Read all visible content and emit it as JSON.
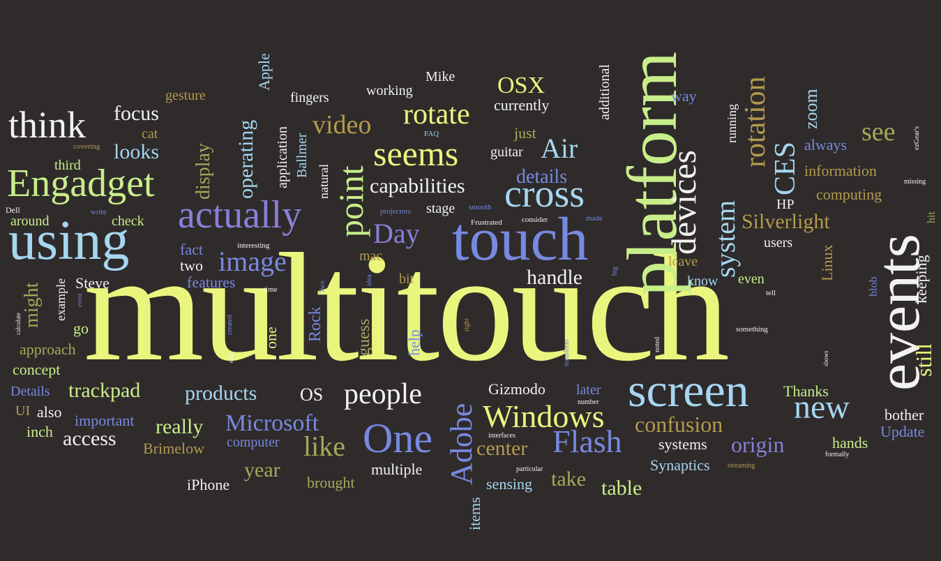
{
  "palette": {
    "background": "#2f2b2b",
    "yellow": "#eaf57e",
    "lime": "#c8ee8a",
    "blue": "#7789e0",
    "lightblue": "#a6d6f0",
    "white": "#f2f2f2",
    "olive": "#a7a85a",
    "gold": "#b39b4d",
    "purple": "#8a7fd8"
  },
  "words": [
    {
      "text": "multitouch",
      "color": "yellow"
    },
    {
      "text": "platform",
      "color": "lime"
    },
    {
      "text": "events",
      "color": "white"
    },
    {
      "text": "touch",
      "color": "blue"
    },
    {
      "text": "using",
      "color": "lightblue"
    },
    {
      "text": "screen",
      "color": "lightblue"
    },
    {
      "text": "Engadget",
      "color": "lime"
    },
    {
      "text": "actually",
      "color": "purple"
    },
    {
      "text": "devices",
      "color": "white"
    },
    {
      "text": "point",
      "color": "lime"
    },
    {
      "text": "One",
      "color": "blue"
    },
    {
      "text": "cross",
      "color": "lightblue"
    },
    {
      "text": "seems",
      "color": "yellow"
    },
    {
      "text": "think",
      "color": "white"
    },
    {
      "text": "new",
      "color": "lightblue"
    },
    {
      "text": "Windows",
      "color": "yellow"
    },
    {
      "text": "Adobe",
      "color": "blue"
    },
    {
      "text": "Flash",
      "color": "blue"
    },
    {
      "text": "rotation",
      "color": "gold"
    },
    {
      "text": "CES",
      "color": "lightblue"
    },
    {
      "text": "people",
      "color": "white"
    },
    {
      "text": "video",
      "color": "gold"
    },
    {
      "text": "rotate",
      "color": "yellow"
    },
    {
      "text": "image",
      "color": "blue"
    },
    {
      "text": "Day",
      "color": "purple"
    },
    {
      "text": "like",
      "color": "olive"
    },
    {
      "text": "system",
      "color": "lightblue"
    },
    {
      "text": "Air",
      "color": "lightblue"
    },
    {
      "text": "Microsoft",
      "color": "blue"
    },
    {
      "text": "see",
      "color": "olive"
    },
    {
      "text": "confusion",
      "color": "gold"
    },
    {
      "text": "origin",
      "color": "purple"
    },
    {
      "text": "center",
      "color": "gold"
    },
    {
      "text": "Silverlight",
      "color": "gold"
    },
    {
      "text": "still",
      "color": "yellow"
    },
    {
      "text": "OSX",
      "color": "yellow"
    },
    {
      "text": "capabilities",
      "color": "white"
    },
    {
      "text": "handle",
      "color": "white"
    },
    {
      "text": "focus",
      "color": "white"
    },
    {
      "text": "looks",
      "color": "lightblue"
    },
    {
      "text": "operating",
      "color": "lightblue"
    },
    {
      "text": "display",
      "color": "olive"
    },
    {
      "text": "might",
      "color": "olive"
    },
    {
      "text": "trackpad",
      "color": "lime"
    },
    {
      "text": "products",
      "color": "lightblue"
    },
    {
      "text": "really",
      "color": "lime"
    },
    {
      "text": "access",
      "color": "white"
    },
    {
      "text": "table",
      "color": "lime"
    },
    {
      "text": "take",
      "color": "olive"
    },
    {
      "text": "year",
      "color": "olive"
    },
    {
      "text": "details",
      "color": "blue"
    },
    {
      "text": "zoom",
      "color": "lightblue"
    },
    {
      "text": "OS",
      "color": "white"
    },
    {
      "text": "Apple",
      "color": "lightblue"
    },
    {
      "text": "keeping",
      "color": "white"
    },
    {
      "text": "Rock",
      "color": "blue"
    },
    {
      "text": "guess",
      "color": "olive"
    },
    {
      "text": "help",
      "color": "blue"
    },
    {
      "text": "one",
      "color": "yellow"
    },
    {
      "text": "items",
      "color": "lightblue"
    },
    {
      "text": "Linux",
      "color": "gold"
    },
    {
      "text": "Gizmodo",
      "color": "white"
    },
    {
      "text": "Thanks",
      "color": "lime"
    },
    {
      "text": "Update",
      "color": "blue"
    },
    {
      "text": "bother",
      "color": "white"
    },
    {
      "text": "hands",
      "color": "lime"
    },
    {
      "text": "brought",
      "color": "olive"
    },
    {
      "text": "multiple",
      "color": "white"
    },
    {
      "text": "sensing",
      "color": "lightblue"
    },
    {
      "text": "Synaptics",
      "color": "lightblue"
    },
    {
      "text": "systems",
      "color": "white"
    },
    {
      "text": "iPhone",
      "color": "white"
    },
    {
      "text": "Brimelow",
      "color": "gold"
    },
    {
      "text": "computer",
      "color": "blue"
    },
    {
      "text": "important",
      "color": "blue"
    },
    {
      "text": "inch",
      "color": "lime"
    },
    {
      "text": "also",
      "color": "white"
    },
    {
      "text": "UI",
      "color": "gold"
    },
    {
      "text": "Details",
      "color": "blue"
    },
    {
      "text": "concept",
      "color": "lime"
    },
    {
      "text": "approach",
      "color": "olive"
    },
    {
      "text": "go",
      "color": "lime"
    },
    {
      "text": "example",
      "color": "white"
    },
    {
      "text": "Steve",
      "color": "white"
    },
    {
      "text": "two",
      "color": "white"
    },
    {
      "text": "features",
      "color": "blue"
    },
    {
      "text": "fact",
      "color": "blue"
    },
    {
      "text": "around",
      "color": "lime"
    },
    {
      "text": "check",
      "color": "lime"
    },
    {
      "text": "third",
      "color": "lime"
    },
    {
      "text": "cat",
      "color": "gold"
    },
    {
      "text": "gesture",
      "color": "gold"
    },
    {
      "text": "fingers",
      "color": "white"
    },
    {
      "text": "working",
      "color": "white"
    },
    {
      "text": "Mike",
      "color": "white"
    },
    {
      "text": "currently",
      "color": "white"
    },
    {
      "text": "just",
      "color": "olive"
    },
    {
      "text": "guitar",
      "color": "white"
    },
    {
      "text": "stage",
      "color": "white"
    },
    {
      "text": "application",
      "color": "white"
    },
    {
      "text": "Ballmer",
      "color": "lightblue"
    },
    {
      "text": "natural",
      "color": "white"
    },
    {
      "text": "additional",
      "color": "white"
    },
    {
      "text": "way",
      "color": "blue"
    },
    {
      "text": "running",
      "color": "white"
    },
    {
      "text": "always",
      "color": "blue"
    },
    {
      "text": "information",
      "color": "gold"
    },
    {
      "text": "computing",
      "color": "gold"
    },
    {
      "text": "HP",
      "color": "white"
    },
    {
      "text": "users",
      "color": "white"
    },
    {
      "text": "leave",
      "color": "gold"
    },
    {
      "text": "know",
      "color": "lightblue"
    },
    {
      "text": "even",
      "color": "lime"
    },
    {
      "text": "blob",
      "color": "blue"
    },
    {
      "text": "hit",
      "color": "olive"
    },
    {
      "text": "later",
      "color": "blue"
    },
    {
      "text": "mac",
      "color": "gold"
    },
    {
      "text": "bit",
      "color": "gold"
    },
    {
      "text": "Dell",
      "color": "white"
    },
    {
      "text": "write",
      "color": "blue"
    },
    {
      "text": "covering",
      "color": "gold"
    },
    {
      "text": "FAQ",
      "color": "lightblue"
    },
    {
      "text": "projectors",
      "color": "blue"
    },
    {
      "text": "smooth",
      "color": "blue"
    },
    {
      "text": "consider",
      "color": "white"
    },
    {
      "text": "made",
      "color": "blue"
    },
    {
      "text": "Frustrated",
      "color": "white"
    },
    {
      "text": "interesting",
      "color": "white"
    },
    {
      "text": "time",
      "color": "white"
    },
    {
      "text": "idea",
      "color": "blue"
    },
    {
      "text": "Two",
      "color": "blue"
    },
    {
      "text": "big",
      "color": "blue"
    },
    {
      "text": "right",
      "color": "gold"
    },
    {
      "text": "tell",
      "color": "white"
    },
    {
      "text": "calculate",
      "color": "white"
    },
    {
      "text": "event",
      "color": "blue"
    },
    {
      "text": "created",
      "color": "blue"
    },
    {
      "text": "else",
      "color": "white"
    },
    {
      "text": "transform",
      "color": "blue"
    },
    {
      "text": "noted",
      "color": "white"
    },
    {
      "text": "something",
      "color": "white"
    },
    {
      "text": "shows",
      "color": "white"
    },
    {
      "text": "number",
      "color": "white"
    },
    {
      "text": "interfaces",
      "color": "white"
    },
    {
      "text": "particular",
      "color": "white"
    },
    {
      "text": "streaming",
      "color": "gold"
    },
    {
      "text": "formally",
      "color": "white"
    },
    {
      "text": "ezGear's",
      "color": "white"
    },
    {
      "text": "missing",
      "color": "white"
    }
  ]
}
